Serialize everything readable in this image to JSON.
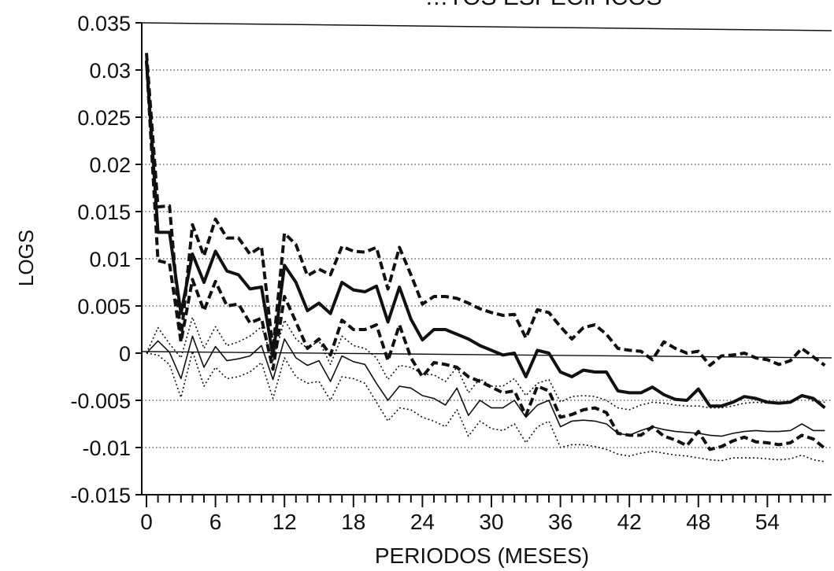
{
  "chart_data": {
    "type": "line",
    "title": "…TOS ESPECÍFICOS",
    "xlabel": "PERIODOS (MESES)",
    "ylabel": "LOGS",
    "xlim": [
      0,
      59
    ],
    "ylim": [
      -0.015,
      0.035
    ],
    "xticks": [
      "0",
      "6",
      "12",
      "18",
      "24",
      "30",
      "36",
      "42",
      "48",
      "54"
    ],
    "xtick_values": [
      0,
      6,
      12,
      18,
      24,
      30,
      36,
      42,
      48,
      54
    ],
    "yticks": [
      "0.035",
      "0.03",
      "0.025",
      "0.02",
      "0.015",
      "0.01",
      "0.005",
      "0",
      "-0.005",
      "-0.01",
      "-0.015"
    ],
    "ytick_values": [
      0.035,
      0.03,
      0.025,
      0.02,
      0.015,
      0.01,
      0.005,
      0,
      -0.005,
      -0.01,
      -0.015
    ],
    "grid": "horizontal dotted",
    "x": [
      0,
      1,
      2,
      3,
      4,
      5,
      6,
      7,
      8,
      9,
      10,
      11,
      12,
      13,
      14,
      15,
      16,
      17,
      18,
      19,
      20,
      21,
      22,
      23,
      24,
      25,
      26,
      27,
      28,
      29,
      30,
      31,
      32,
      33,
      34,
      35,
      36,
      37,
      38,
      39,
      40,
      41,
      42,
      43,
      44,
      45,
      46,
      47,
      48,
      49,
      50,
      51,
      52,
      53,
      54,
      55,
      56,
      57,
      58,
      59
    ],
    "series": [
      {
        "style": "thick-solid",
        "values": [
          0.031,
          0.0128,
          0.0128,
          0.0042,
          0.0105,
          0.0075,
          0.0108,
          0.0087,
          0.0083,
          0.0068,
          0.007,
          -0.0003,
          0.0093,
          0.0075,
          0.0045,
          0.0053,
          0.0042,
          0.0075,
          0.0067,
          0.0065,
          0.0071,
          0.0033,
          0.007,
          0.0036,
          0.0014,
          0.0025,
          0.0025,
          0.002,
          0.0015,
          0.0008,
          0.0003,
          -0.0002,
          0.0,
          -0.0025,
          0.0003,
          0.0,
          -0.002,
          -0.0025,
          -0.0018,
          -0.002,
          -0.002,
          -0.004,
          -0.0042,
          -0.0042,
          -0.0036,
          -0.0044,
          -0.0049,
          -0.005,
          -0.0038,
          -0.0056,
          -0.0056,
          -0.0052,
          -0.0046,
          -0.0048,
          -0.0052,
          -0.0053,
          -0.0052,
          -0.0045,
          -0.0048,
          -0.0058
        ]
      },
      {
        "style": "thick-dashed",
        "values": [
          0.0318,
          0.0155,
          0.0156,
          0.0015,
          0.0136,
          0.0103,
          0.0142,
          0.0122,
          0.0122,
          0.0105,
          0.0113,
          0.0003,
          0.0127,
          0.0115,
          0.0082,
          0.0089,
          0.0083,
          0.0113,
          0.0108,
          0.0107,
          0.0112,
          0.0068,
          0.0112,
          0.0083,
          0.0052,
          0.006,
          0.006,
          0.0058,
          0.0053,
          0.0047,
          0.0043,
          0.004,
          0.0041,
          0.0016,
          0.0046,
          0.0043,
          0.0028,
          0.0015,
          0.0027,
          0.003,
          0.002,
          0.0005,
          0.0003,
          0.0002,
          -0.0007,
          0.0012,
          0.0005,
          0.0,
          0.0002,
          -0.0013,
          -0.0003,
          -0.0002,
          0.0,
          -0.0005,
          -0.0007,
          -0.0012,
          -0.0008,
          0.0005,
          -0.0004,
          -0.0013
        ]
      },
      {
        "style": "thick-dashed",
        "values": [
          0.031,
          0.0098,
          0.0095,
          0.0012,
          0.0078,
          0.0045,
          0.0076,
          0.005,
          0.0052,
          0.0032,
          0.0037,
          -0.0017,
          0.006,
          0.0033,
          0.0005,
          0.0015,
          -0.0002,
          0.0035,
          0.0025,
          0.0025,
          0.003,
          -0.0008,
          0.003,
          -0.0005,
          -0.0025,
          -0.001,
          -0.0012,
          -0.0015,
          -0.0025,
          -0.003,
          -0.0036,
          -0.0042,
          -0.004,
          -0.0066,
          -0.0035,
          -0.004,
          -0.0068,
          -0.0065,
          -0.006,
          -0.0058,
          -0.0063,
          -0.0085,
          -0.0087,
          -0.0087,
          -0.0078,
          -0.0088,
          -0.0092,
          -0.0098,
          -0.0083,
          -0.0102,
          -0.0099,
          -0.0093,
          -0.0089,
          -0.0094,
          -0.0095,
          -0.0097,
          -0.0095,
          -0.0087,
          -0.0091,
          -0.0101
        ]
      },
      {
        "style": "thin-solid",
        "values": [
          0.0,
          0.0013,
          0.0001,
          -0.0027,
          0.0018,
          -0.0015,
          0.0007,
          -0.0008,
          -0.0006,
          -0.0003,
          0.0008,
          -0.0028,
          0.0015,
          -0.0005,
          -0.0013,
          -0.0008,
          -0.003,
          -0.0003,
          -0.0009,
          -0.0012,
          -0.0032,
          -0.005,
          -0.0035,
          -0.0037,
          -0.0045,
          -0.0048,
          -0.0055,
          -0.0037,
          -0.0066,
          -0.005,
          -0.0058,
          -0.0058,
          -0.005,
          -0.0068,
          -0.0055,
          -0.005,
          -0.0078,
          -0.0072,
          -0.0071,
          -0.0072,
          -0.0075,
          -0.0085,
          -0.0087,
          -0.0082,
          -0.0078,
          -0.0081,
          -0.0083,
          -0.0084,
          -0.0085,
          -0.0087,
          -0.0088,
          -0.0085,
          -0.0083,
          -0.0082,
          -0.0083,
          -0.0083,
          -0.0082,
          -0.0075,
          -0.0082,
          -0.0082
        ]
      },
      {
        "style": "thin-dotted",
        "values": [
          0.0,
          0.0027,
          0.001,
          -0.0005,
          0.0038,
          0.0005,
          0.0028,
          0.0008,
          0.0012,
          0.0018,
          0.0028,
          -0.0008,
          0.0035,
          0.0015,
          0.0005,
          0.0013,
          -0.0012,
          0.0018,
          0.0008,
          0.0005,
          -0.0005,
          -0.0028,
          -0.0013,
          -0.0015,
          -0.0022,
          -0.0023,
          -0.003,
          -0.0015,
          -0.0042,
          -0.0027,
          -0.0035,
          -0.0035,
          -0.0027,
          -0.0045,
          -0.0032,
          -0.0028,
          -0.0052,
          -0.0046,
          -0.0045,
          -0.0046,
          -0.005,
          -0.0058,
          -0.006,
          -0.0055,
          -0.0052,
          -0.0053,
          -0.0055,
          -0.0056,
          -0.0056,
          -0.0058,
          -0.0058,
          -0.0056,
          -0.0053,
          -0.0052,
          -0.0053,
          -0.0053,
          -0.0052,
          -0.0044,
          -0.0051,
          -0.0052
        ]
      },
      {
        "style": "thin-dotted",
        "values": [
          0.0,
          -0.0002,
          -0.0012,
          -0.0047,
          0.0002,
          -0.0035,
          -0.0015,
          -0.0027,
          -0.0025,
          -0.002,
          -0.001,
          -0.0048,
          -0.0005,
          -0.0025,
          -0.0032,
          -0.003,
          -0.005,
          -0.0025,
          -0.0027,
          -0.0032,
          -0.0052,
          -0.0072,
          -0.0058,
          -0.006,
          -0.0068,
          -0.0072,
          -0.0078,
          -0.006,
          -0.0088,
          -0.0072,
          -0.008,
          -0.0082,
          -0.0075,
          -0.0095,
          -0.0078,
          -0.0072,
          -0.01,
          -0.0097,
          -0.0097,
          -0.0099,
          -0.0102,
          -0.0107,
          -0.0109,
          -0.0106,
          -0.0104,
          -0.0106,
          -0.0108,
          -0.0109,
          -0.0111,
          -0.0113,
          -0.0114,
          -0.0111,
          -0.0111,
          -0.0111,
          -0.0112,
          -0.0113,
          -0.0112,
          -0.0108,
          -0.0113,
          -0.0115
        ]
      }
    ]
  }
}
